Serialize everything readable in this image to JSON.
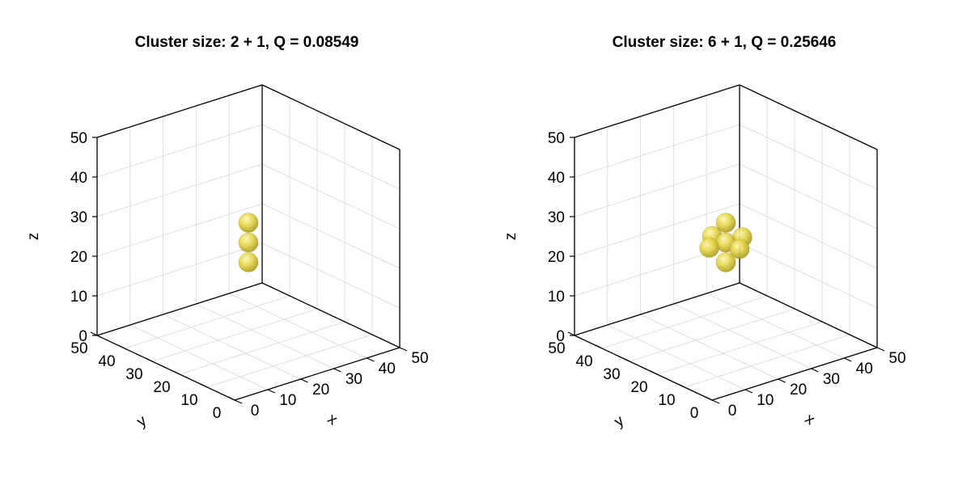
{
  "chart_data": [
    {
      "type": "scatter3d",
      "title": "Cluster size: 2 + 1, Q = 0.08549",
      "xlabel": "x",
      "ylabel": "y",
      "zlabel": "z",
      "xlim": [
        0,
        50
      ],
      "ylim": [
        0,
        50
      ],
      "zlim": [
        0,
        50
      ],
      "ticks": [
        "0",
        "10",
        "20",
        "30",
        "40",
        "50"
      ],
      "tick_values": [
        0,
        10,
        20,
        30,
        40,
        50
      ],
      "grid": true,
      "marker": "sphere",
      "marker_color": "#e6d84a",
      "points": [
        {
          "x": 25,
          "y": 25,
          "z": 20
        },
        {
          "x": 25,
          "y": 25,
          "z": 25
        },
        {
          "x": 25,
          "y": 25,
          "z": 30
        }
      ]
    },
    {
      "type": "scatter3d",
      "title": "Cluster size: 6 + 1, Q = 0.25646",
      "xlabel": "x",
      "ylabel": "y",
      "zlabel": "z",
      "xlim": [
        0,
        50
      ],
      "ylim": [
        0,
        50
      ],
      "zlim": [
        0,
        50
      ],
      "ticks": [
        "0",
        "10",
        "20",
        "30",
        "40",
        "50"
      ],
      "tick_values": [
        0,
        10,
        20,
        30,
        40,
        50
      ],
      "grid": true,
      "marker": "sphere",
      "marker_color": "#e6d84a",
      "points": [
        {
          "x": 25,
          "y": 30,
          "z": 25
        },
        {
          "x": 30,
          "y": 25,
          "z": 25
        },
        {
          "x": 25,
          "y": 25,
          "z": 30
        },
        {
          "x": 25,
          "y": 25,
          "z": 25
        },
        {
          "x": 20,
          "y": 25,
          "z": 25
        },
        {
          "x": 25,
          "y": 20,
          "z": 25
        },
        {
          "x": 25,
          "y": 25,
          "z": 20
        }
      ]
    }
  ]
}
